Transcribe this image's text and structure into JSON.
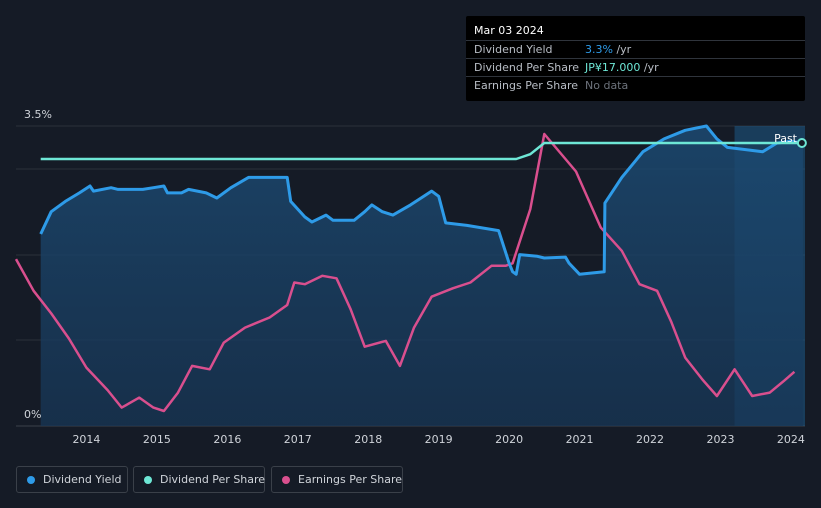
{
  "tooltip": {
    "date": "Mar 03 2024",
    "rows": [
      {
        "label": "Dividend Yield",
        "value": "3.3%",
        "unit": " /yr"
      },
      {
        "label": "Dividend Per Share",
        "value": "JP¥17.000",
        "unit": " /yr"
      },
      {
        "label": "Earnings Per Share",
        "value": "No data",
        "unit": ""
      }
    ]
  },
  "past_label": "Past",
  "legend": [
    {
      "label": "Dividend Yield",
      "color": "#2e9be8"
    },
    {
      "label": "Dividend Per Share",
      "color": "#6ee7d6"
    },
    {
      "label": "Earnings Per Share",
      "color": "#d94f8e"
    }
  ],
  "chart_data": {
    "type": "line",
    "x_range": [
      2013.0,
      2024.2
    ],
    "y_range": [
      0,
      3.5
    ],
    "y_tick_labels": [
      "3.5%",
      "0%"
    ],
    "x_ticks": [
      2014,
      2015,
      2016,
      2017,
      2018,
      2019,
      2020,
      2021,
      2022,
      2023,
      2024
    ],
    "forecast_start": 2023.2,
    "series": [
      {
        "name": "Dividend Yield",
        "color": "#2e9be8",
        "unit": "%",
        "points": [
          [
            2013.35,
            2.24
          ],
          [
            2013.5,
            2.5
          ],
          [
            2013.7,
            2.62
          ],
          [
            2013.9,
            2.72
          ],
          [
            2014.05,
            2.8
          ],
          [
            2014.1,
            2.74
          ],
          [
            2014.35,
            2.78
          ],
          [
            2014.45,
            2.76
          ],
          [
            2014.8,
            2.76
          ],
          [
            2014.95,
            2.78
          ],
          [
            2015.1,
            2.8
          ],
          [
            2015.15,
            2.72
          ],
          [
            2015.35,
            2.72
          ],
          [
            2015.45,
            2.76
          ],
          [
            2015.7,
            2.72
          ],
          [
            2015.85,
            2.66
          ],
          [
            2016.05,
            2.78
          ],
          [
            2016.3,
            2.9
          ],
          [
            2016.5,
            2.9
          ],
          [
            2016.85,
            2.9
          ],
          [
            2016.9,
            2.62
          ],
          [
            2017.1,
            2.44
          ],
          [
            2017.2,
            2.38
          ],
          [
            2017.4,
            2.46
          ],
          [
            2017.5,
            2.4
          ],
          [
            2017.8,
            2.4
          ],
          [
            2017.95,
            2.5
          ],
          [
            2018.05,
            2.58
          ],
          [
            2018.2,
            2.5
          ],
          [
            2018.35,
            2.46
          ],
          [
            2018.6,
            2.58
          ],
          [
            2018.75,
            2.66
          ],
          [
            2018.9,
            2.74
          ],
          [
            2019.0,
            2.68
          ],
          [
            2019.1,
            2.37
          ],
          [
            2019.4,
            2.34
          ],
          [
            2019.85,
            2.28
          ],
          [
            2020.0,
            1.9
          ],
          [
            2020.05,
            1.8
          ],
          [
            2020.1,
            1.77
          ],
          [
            2020.15,
            2.0
          ],
          [
            2020.4,
            1.98
          ],
          [
            2020.5,
            1.96
          ],
          [
            2020.8,
            1.97
          ],
          [
            2020.85,
            1.9
          ],
          [
            2021.0,
            1.77
          ],
          [
            2021.35,
            1.8
          ],
          [
            2021.36,
            2.6
          ],
          [
            2021.6,
            2.9
          ],
          [
            2021.9,
            3.2
          ],
          [
            2022.2,
            3.35
          ],
          [
            2022.5,
            3.45
          ],
          [
            2022.8,
            3.5
          ],
          [
            2022.95,
            3.35
          ],
          [
            2023.1,
            3.25
          ],
          [
            2023.4,
            3.22
          ],
          [
            2023.6,
            3.2
          ],
          [
            2023.8,
            3.3
          ],
          [
            2024.0,
            3.32
          ],
          [
            2024.17,
            3.3
          ]
        ]
      },
      {
        "name": "Dividend Per Share",
        "color": "#6ee7d6",
        "unit": "JP¥",
        "points": [
          [
            2013.0,
            15.0
          ],
          [
            2020.1,
            15.0
          ],
          [
            2020.3,
            15.6
          ],
          [
            2020.5,
            17.0
          ],
          [
            2024.17,
            17.0
          ]
        ]
      },
      {
        "name": "Earnings Per Share",
        "color": "#d94f8e",
        "unit": "JP¥",
        "points": [
          [
            2013.0,
            2.0
          ],
          [
            2013.25,
            1.62
          ],
          [
            2013.5,
            1.35
          ],
          [
            2013.75,
            1.05
          ],
          [
            2014.0,
            0.7
          ],
          [
            2014.3,
            0.43
          ],
          [
            2014.5,
            0.22
          ],
          [
            2014.75,
            0.34
          ],
          [
            2014.95,
            0.22
          ],
          [
            2015.1,
            0.18
          ],
          [
            2015.3,
            0.4
          ],
          [
            2015.5,
            0.72
          ],
          [
            2015.75,
            0.68
          ],
          [
            2015.95,
            1.0
          ],
          [
            2016.25,
            1.18
          ],
          [
            2016.6,
            1.3
          ],
          [
            2016.85,
            1.45
          ],
          [
            2016.95,
            1.72
          ],
          [
            2017.1,
            1.7
          ],
          [
            2017.35,
            1.8
          ],
          [
            2017.55,
            1.77
          ],
          [
            2017.75,
            1.4
          ],
          [
            2017.95,
            0.95
          ],
          [
            2018.25,
            1.02
          ],
          [
            2018.45,
            0.72
          ],
          [
            2018.65,
            1.18
          ],
          [
            2018.9,
            1.55
          ],
          [
            2019.2,
            1.65
          ],
          [
            2019.45,
            1.72
          ],
          [
            2019.75,
            1.92
          ],
          [
            2019.95,
            1.92
          ],
          [
            2020.05,
            1.95
          ],
          [
            2020.3,
            2.6
          ],
          [
            2020.5,
            3.5
          ],
          [
            2020.65,
            3.35
          ],
          [
            2020.95,
            3.05
          ],
          [
            2021.3,
            2.38
          ],
          [
            2021.6,
            2.1
          ],
          [
            2021.85,
            1.7
          ],
          [
            2022.1,
            1.62
          ],
          [
            2022.3,
            1.25
          ],
          [
            2022.5,
            0.82
          ],
          [
            2022.75,
            0.55
          ],
          [
            2022.95,
            0.36
          ],
          [
            2023.2,
            0.68
          ],
          [
            2023.45,
            0.36
          ],
          [
            2023.7,
            0.4
          ],
          [
            2023.9,
            0.54
          ],
          [
            2024.05,
            0.65
          ]
        ]
      }
    ]
  }
}
